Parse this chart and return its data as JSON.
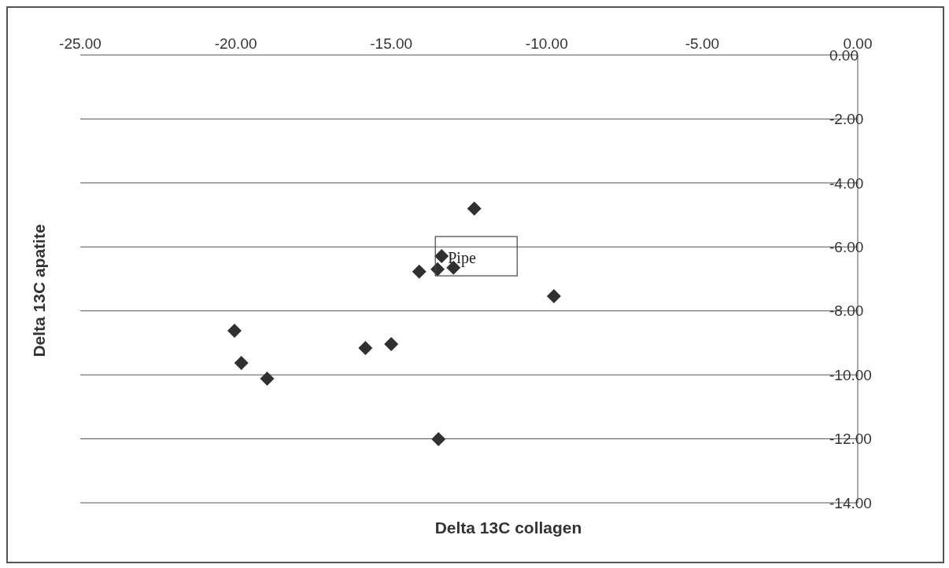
{
  "chart_data": {
    "type": "scatter",
    "xlabel": "Delta 13C collagen",
    "ylabel": "Delta 13C apatite",
    "x": [
      -12.33,
      -13.38,
      -14.1,
      -13.51,
      -13.0,
      -9.77,
      -20.04,
      -19.82,
      -18.99,
      -15.83,
      -15.0,
      -13.48
    ],
    "series": [
      {
        "color": "#303030",
        "values": [
          -4.8,
          -6.29,
          -6.77,
          -6.7,
          -6.65,
          -7.54,
          -8.62,
          -9.63,
          -10.12,
          -9.16,
          -9.04,
          -12.01
        ]
      }
    ],
    "marker": "diamond",
    "grid": "y",
    "legend": false,
    "xlim": [
      -25,
      0
    ],
    "xticks": [
      {
        "value": -25,
        "label": "-25.00"
      },
      {
        "value": -20,
        "label": "-20.00"
      },
      {
        "value": -15,
        "label": "-15.00"
      },
      {
        "value": -10,
        "label": "-10.00"
      },
      {
        "value": -5,
        "label": "-5.00"
      },
      {
        "value": 0,
        "label": "0.00"
      }
    ],
    "ylim": [
      -14,
      0
    ],
    "yticks": [
      {
        "value": 0,
        "label": "0.00"
      },
      {
        "value": -2,
        "label": "-2.00"
      },
      {
        "value": -4,
        "label": "-4.00"
      },
      {
        "value": -6,
        "label": "-6.00"
      },
      {
        "value": -8,
        "label": "-8.00"
      },
      {
        "value": -10,
        "label": "-10.00"
      },
      {
        "value": -12,
        "label": "-12.00"
      },
      {
        "value": -14,
        "label": "-14.00"
      }
    ],
    "annotations": [
      {
        "text": "Pipe",
        "x": -13.38,
        "y": -6.29
      }
    ]
  }
}
